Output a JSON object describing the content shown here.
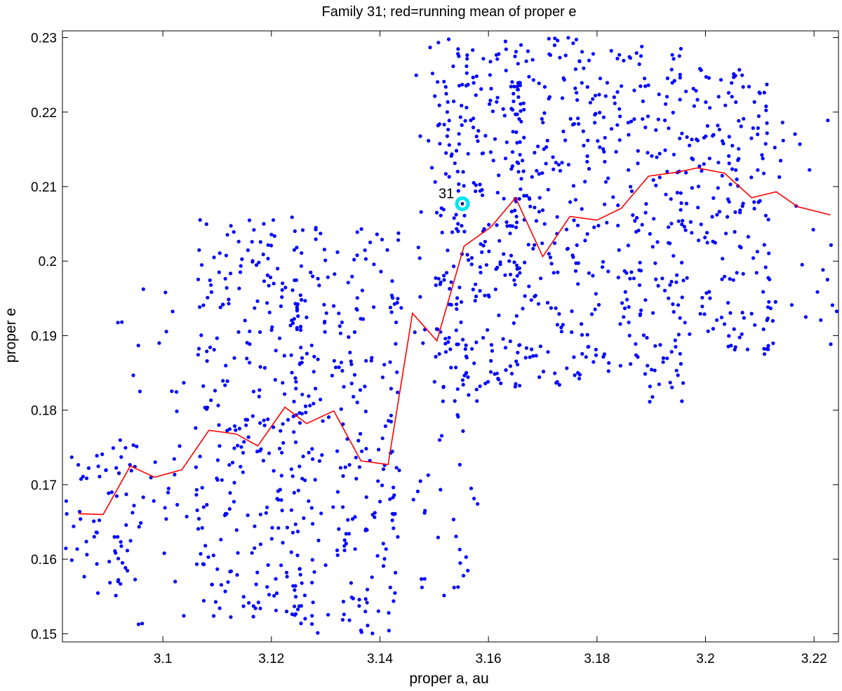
{
  "chart_data": {
    "type": "scatter",
    "title": "Family 31; red=running mean of proper e",
    "xlabel": "proper a, au",
    "ylabel": "proper e",
    "xlim": [
      3.0815,
      3.2245
    ],
    "ylim": [
      0.1489,
      0.2309
    ],
    "xticks": [
      3.1,
      3.12,
      3.14,
      3.16,
      3.18,
      3.2,
      3.22
    ],
    "xtick_labels": [
      "3.1",
      "3.12",
      "3.14",
      "3.16",
      "3.18",
      "3.2",
      "3.22"
    ],
    "yticks": [
      0.15,
      0.16,
      0.17,
      0.18,
      0.19,
      0.2,
      0.21,
      0.22,
      0.23
    ],
    "ytick_labels": [
      "0.15",
      "0.16",
      "0.17",
      "0.18",
      "0.19",
      "0.2",
      "0.21",
      "0.22",
      "0.23"
    ],
    "grid": false,
    "colors": {
      "points": "#0000ff",
      "mean_line": "#ff0000",
      "highlight": "#00e5ee"
    },
    "highlight": {
      "label": "31",
      "x": 3.1552,
      "y": 0.2077
    },
    "running_mean": {
      "x": [
        3.0845,
        3.089,
        3.094,
        3.0985,
        3.1035,
        3.1085,
        3.1135,
        3.1175,
        3.1225,
        3.1265,
        3.1315,
        3.1365,
        3.1415,
        3.146,
        3.1505,
        3.1555,
        3.1605,
        3.165,
        3.17,
        3.175,
        3.18,
        3.1845,
        3.1895,
        3.1945,
        3.1985,
        3.2035,
        3.2085,
        3.213,
        3.217,
        3.223
      ],
      "y": [
        0.1661,
        0.166,
        0.1725,
        0.171,
        0.172,
        0.1773,
        0.1768,
        0.1752,
        0.1804,
        0.1782,
        0.1799,
        0.1732,
        0.1727,
        0.193,
        0.1893,
        0.202,
        0.2046,
        0.2085,
        0.2006,
        0.206,
        0.2055,
        0.2071,
        0.2114,
        0.2119,
        0.2125,
        0.2118,
        0.2085,
        0.2093,
        0.2073,
        0.2062
      ]
    },
    "scatter_clusters": [
      {
        "x": [
          3.082,
          3.096
        ],
        "y": [
          0.155,
          0.175
        ],
        "n": 60
      },
      {
        "x": [
          3.09,
          3.108
        ],
        "y": [
          0.151,
          0.197
        ],
        "n": 45
      },
      {
        "x": [
          3.106,
          3.126
        ],
        "y": [
          0.152,
          0.206
        ],
        "n": 270
      },
      {
        "x": [
          3.124,
          3.144
        ],
        "y": [
          0.15,
          0.206
        ],
        "n": 250
      },
      {
        "x": [
          3.146,
          3.158
        ],
        "y": [
          0.155,
          0.229
        ],
        "n": 80
      },
      {
        "x": [
          3.15,
          3.166
        ],
        "y": [
          0.183,
          0.23
        ],
        "n": 220
      },
      {
        "x": [
          3.164,
          3.18
        ],
        "y": [
          0.183,
          0.23
        ],
        "n": 220
      },
      {
        "x": [
          3.18,
          3.196
        ],
        "y": [
          0.181,
          0.229
        ],
        "n": 200
      },
      {
        "x": [
          3.196,
          3.212
        ],
        "y": [
          0.188,
          0.226
        ],
        "n": 170
      },
      {
        "x": [
          3.21,
          3.2245
        ],
        "y": [
          0.187,
          0.219
        ],
        "n": 35
      }
    ]
  }
}
